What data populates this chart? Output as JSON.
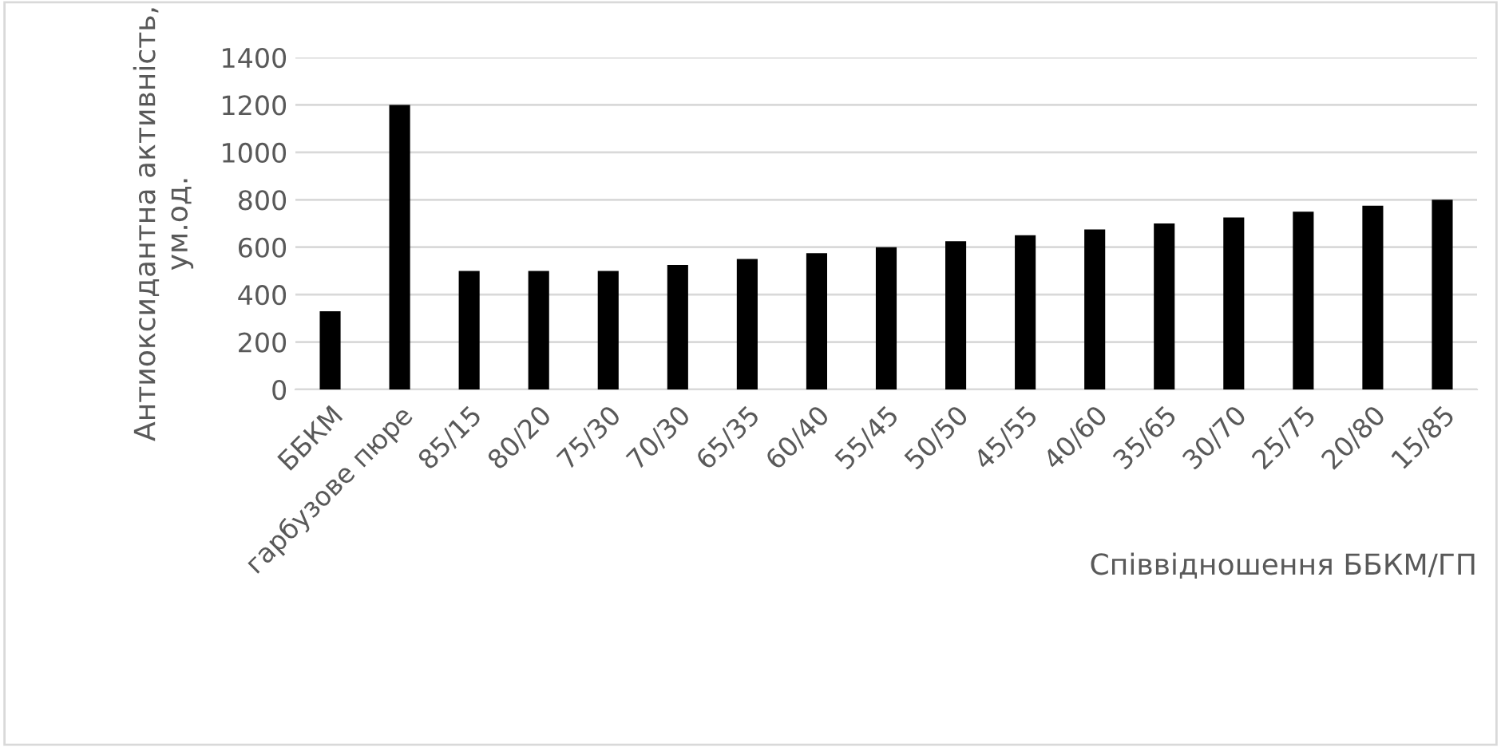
{
  "chart_data": {
    "type": "bar",
    "ylabel": "Антиоксидантна активність,\nум.од.",
    "xlabel": "Співвідношення ББКМ/ГП",
    "categories": [
      "ББКМ",
      "гарбузове пюре",
      "85/15",
      "80/20",
      "75/30",
      "70/30",
      "65/35",
      "60/40",
      "55/45",
      "50/50",
      "45/55",
      "40/60",
      "35/65",
      "30/70",
      "25/75",
      "20/80",
      "15/85"
    ],
    "values": [
      330,
      1200,
      500,
      500,
      500,
      525,
      550,
      575,
      600,
      625,
      650,
      675,
      700,
      725,
      750,
      775,
      800
    ],
    "color": "#000000",
    "ylim": [
      0,
      1400
    ],
    "yticks": [
      0,
      200,
      400,
      600,
      800,
      1000,
      1200,
      1400
    ],
    "grid": "y",
    "legend": false
  }
}
